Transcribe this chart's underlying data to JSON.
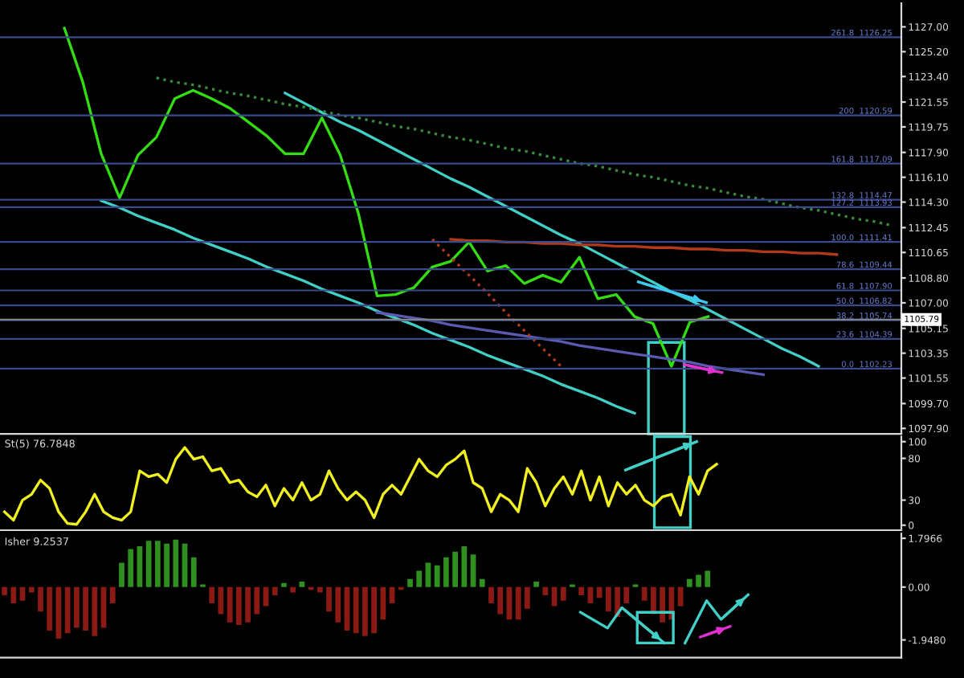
{
  "chart_data": [
    {
      "type": "line",
      "ylim": [
        1097.5,
        1128.7
      ],
      "tick_labels": "y",
      "categories": [
        null,
        null,
        null,
        null,
        null,
        null,
        null,
        null,
        null,
        null,
        null,
        null,
        null,
        null,
        null,
        null,
        null,
        null,
        null,
        null,
        null,
        null,
        null,
        null,
        null,
        null,
        null,
        null,
        null,
        null,
        null,
        null,
        null,
        null,
        null,
        null,
        null,
        null,
        null,
        null,
        null,
        null,
        null,
        null,
        null,
        null,
        null,
        null,
        null
      ],
      "yticks": [
        {
          "value": 1127.0,
          "label": "1127.00"
        },
        {
          "value": 1125.2,
          "label": "1125.20"
        },
        {
          "value": 1123.4,
          "label": "1123.40"
        },
        {
          "value": 1121.55,
          "label": "1121.55"
        },
        {
          "value": 1119.75,
          "label": "1119.75"
        },
        {
          "value": 1117.9,
          "label": "1117.90"
        },
        {
          "value": 1116.1,
          "label": "1116.10"
        },
        {
          "value": 1114.3,
          "label": "1114.30"
        },
        {
          "value": 1112.45,
          "label": "1112.45"
        },
        {
          "value": 1110.65,
          "label": "1110.65"
        },
        {
          "value": 1108.8,
          "label": "1108.80"
        },
        {
          "value": 1107.0,
          "label": "1107.00"
        },
        {
          "value": 1105.15,
          "label": "1105.15"
        },
        {
          "value": 1103.35,
          "label": "1103.35"
        },
        {
          "value": 1101.55,
          "label": "1101.55"
        },
        {
          "value": 1099.7,
          "label": "1099.70"
        },
        {
          "value": 1097.9,
          "label": "1097.90"
        }
      ],
      "series": [
        {
          "color": "#33dd11",
          "values": [
            null,
            null,
            null,
            1126.9,
            1123.0,
            1117.8,
            1114.6,
            1117.7,
            1119.0,
            1121.8,
            1122.4,
            1121.8,
            1121.1,
            1120.1,
            1119.1,
            1117.8,
            1117.8,
            1120.4,
            1117.7,
            1113.4,
            1107.5,
            1107.6,
            1108.1,
            1109.6,
            1110.0,
            1111.4,
            1109.3,
            1109.7,
            1108.4,
            1109.0,
            1108.5,
            1110.3,
            1107.3,
            1107.6,
            1106.0,
            1105.5,
            1102.4,
            1105.6,
            1106.0,
            null,
            null,
            null,
            null,
            null,
            null,
            null,
            null,
            null,
            null
          ]
        },
        {
          "color": "#40d0c8",
          "values": [
            null,
            null,
            null,
            null,
            null,
            1114.4,
            1113.9,
            1113.3,
            1112.8,
            1112.3,
            1111.7,
            1111.2,
            1110.7,
            1110.2,
            1109.6,
            1109.1,
            1108.6,
            1108.0,
            1107.5,
            1107.0,
            1106.4,
            1105.9,
            1105.4,
            1104.8,
            1104.3,
            1103.8,
            1103.2,
            1102.7,
            1102.2,
            1101.7,
            1101.1,
            1100.6,
            1100.1,
            1099.5,
            1099.0,
            null,
            null,
            null,
            null,
            null,
            null,
            null,
            null,
            null,
            null,
            null,
            null,
            null,
            null
          ]
        },
        {
          "color": "#40d0c8",
          "values": [
            null,
            null,
            null,
            null,
            null,
            null,
            null,
            null,
            null,
            null,
            null,
            null,
            null,
            null,
            null,
            1122.2,
            1121.5,
            1120.8,
            1120.1,
            1119.5,
            1118.8,
            1118.1,
            1117.4,
            1116.7,
            1116.0,
            1115.4,
            1114.7,
            1114.0,
            1113.3,
            1112.6,
            1111.9,
            1111.3,
            1110.6,
            1109.9,
            1109.2,
            1108.5,
            1107.8,
            1107.2,
            1106.5,
            1105.8,
            1105.1,
            1104.4,
            1103.7,
            1103.1,
            1102.4,
            null,
            null,
            null,
            null
          ]
        },
        {
          "color": "#3a8a3a",
          "line_style": "dotted",
          "values": [
            null,
            null,
            null,
            null,
            null,
            null,
            null,
            null,
            1123.3,
            1123.0,
            1122.8,
            1122.5,
            1122.2,
            1122.0,
            1121.7,
            1121.4,
            1121.2,
            1120.9,
            1120.6,
            1120.4,
            1120.1,
            1119.8,
            1119.6,
            1119.3,
            1119.0,
            1118.8,
            1118.5,
            1118.2,
            1118.0,
            1117.7,
            1117.4,
            1117.1,
            1116.9,
            1116.6,
            1116.3,
            1116.1,
            1115.8,
            1115.5,
            1115.3,
            1115.0,
            1114.7,
            1114.5,
            1114.2,
            1113.9,
            1113.7,
            1113.4,
            1113.1,
            1112.9,
            1112.6
          ]
        },
        {
          "color": "#b03a1a",
          "values": [
            null,
            null,
            null,
            null,
            null,
            null,
            null,
            null,
            null,
            null,
            null,
            null,
            null,
            null,
            null,
            null,
            null,
            null,
            null,
            null,
            null,
            null,
            null,
            null,
            1111.6,
            1111.5,
            1111.5,
            1111.4,
            1111.4,
            1111.3,
            1111.3,
            1111.2,
            1111.2,
            1111.1,
            1111.1,
            1111.0,
            1111.0,
            1110.9,
            1110.9,
            1110.8,
            1110.8,
            1110.7,
            1110.7,
            1110.6,
            1110.6,
            1110.5,
            null,
            null,
            null
          ]
        },
        {
          "color": "#5a5ab0",
          "values": [
            null,
            null,
            null,
            null,
            null,
            null,
            null,
            null,
            null,
            null,
            null,
            null,
            null,
            null,
            null,
            null,
            null,
            null,
            null,
            null,
            1106.3,
            1106.1,
            1105.9,
            1105.7,
            1105.4,
            1105.2,
            1105.0,
            1104.8,
            1104.6,
            1104.4,
            1104.2,
            1103.9,
            1103.7,
            1103.5,
            1103.3,
            1103.1,
            1102.9,
            1102.7,
            1102.4,
            1102.2,
            1102.0,
            1101.8,
            null,
            null,
            null,
            null,
            null,
            null,
            null
          ]
        },
        {
          "color": "#b03a1a",
          "line_style": "dotted",
          "values": [
            null,
            null,
            null,
            null,
            null,
            null,
            null,
            null,
            null,
            null,
            null,
            null,
            null,
            null,
            null,
            null,
            null,
            null,
            null,
            null,
            null,
            null,
            null,
            1111.6,
            1110.3,
            1109.0,
            1107.7,
            1106.3,
            1105.0,
            1103.7,
            1102.4,
            null,
            null,
            null,
            null,
            null,
            null,
            null,
            null,
            null,
            null,
            null,
            null,
            null,
            null,
            null,
            null,
            null,
            null
          ]
        }
      ],
      "ref_lines": [
        {
          "axis": "y",
          "value": 1126.25,
          "label": "261.8  1126.25",
          "color": "#3a4a8a"
        },
        {
          "axis": "y",
          "value": 1120.59,
          "label": "200  1120.59",
          "color": "#3a4a8a"
        },
        {
          "axis": "y",
          "value": 1117.09,
          "label": "161.8  1117.09",
          "color": "#3a4a8a"
        },
        {
          "axis": "y",
          "value": 1114.47,
          "label": "132.8  1114.47",
          "color": "#3a4a8a"
        },
        {
          "axis": "y",
          "value": 1113.93,
          "label": "127.2  1113.93",
          "color": "#3a4a8a"
        },
        {
          "axis": "y",
          "value": 1111.41,
          "label": "100.0  1111.41",
          "color": "#3a4a8a"
        },
        {
          "axis": "y",
          "value": 1109.44,
          "label": "78.6  1109.44",
          "color": "#3a4a8a"
        },
        {
          "axis": "y",
          "value": 1107.9,
          "label": "61.8  1107.90",
          "color": "#3a4a8a"
        },
        {
          "axis": "y",
          "value": 1106.82,
          "label": "50.0  1106.82",
          "color": "#3a4a8a"
        },
        {
          "axis": "y",
          "value": 1105.74,
          "label": "38.2  1105.74",
          "color": "#3a4a8a"
        },
        {
          "axis": "y",
          "value": 1104.39,
          "label": "23.6  1104.39",
          "color": "#3a4a8a"
        },
        {
          "axis": "y",
          "value": 1102.23,
          "label": "0.0  1102.23",
          "color": "#3a4a8a"
        },
        {
          "axis": "y",
          "value": 1105.79,
          "label": "1105.79",
          "color": "#8a8a8a"
        }
      ]
    },
    {
      "type": "line",
      "title": "St(5) 76.7848",
      "ylim": [
        -6,
        106
      ],
      "tick_labels": "y",
      "categories": [
        null,
        null,
        null,
        null,
        null,
        null,
        null,
        null,
        null,
        null,
        null,
        null,
        null,
        null,
        null,
        null,
        null,
        null,
        null,
        null,
        null,
        null,
        null,
        null,
        null,
        null,
        null,
        null,
        null,
        null,
        null,
        null,
        null,
        null,
        null,
        null,
        null,
        null,
        null,
        null,
        null,
        null,
        null,
        null,
        null,
        null,
        null,
        null,
        null,
        null,
        null,
        null,
        null,
        null,
        null,
        null,
        null,
        null,
        null,
        null,
        null,
        null,
        null,
        null,
        null,
        null,
        null,
        null,
        null,
        null,
        null,
        null,
        null,
        null,
        null,
        null,
        null,
        null,
        null,
        null,
        null,
        null,
        null,
        null,
        null,
        null,
        null,
        null,
        null,
        null,
        null,
        null,
        null,
        null,
        null,
        null,
        null,
        null,
        null,
        null
      ],
      "yticks": [
        0,
        30,
        80,
        100
      ],
      "series": [
        {
          "color": "#f0f020",
          "values": [
            16,
            6,
            30,
            37,
            54,
            44,
            16,
            2,
            1,
            16,
            37,
            16,
            9,
            6,
            16,
            65,
            58,
            61,
            51,
            79,
            93,
            79,
            82,
            65,
            68,
            51,
            54,
            40,
            34,
            48,
            23,
            44,
            30,
            51,
            30,
            37,
            65,
            44,
            30,
            40,
            30,
            9,
            37,
            48,
            37,
            58,
            79,
            65,
            58,
            72,
            79,
            89,
            51,
            44,
            16,
            37,
            30,
            16,
            68,
            51,
            23,
            44,
            58,
            37,
            65,
            30,
            58,
            23,
            51,
            37,
            48,
            30,
            23,
            34,
            37,
            12,
            58,
            37,
            65,
            73,
            null,
            null,
            null,
            null,
            null,
            null,
            null,
            null,
            null,
            null,
            null,
            null,
            null,
            null,
            null,
            null,
            null,
            null,
            null,
            null
          ]
        }
      ]
    },
    {
      "type": "bar",
      "title": "Isher 9.2537",
      "ylim": [
        -2.6,
        1.97
      ],
      "tick_labels": "y",
      "categories": [
        null,
        null,
        null,
        null,
        null,
        null,
        null,
        null,
        null,
        null,
        null,
        null,
        null,
        null,
        null,
        null,
        null,
        null,
        null,
        null,
        null,
        null,
        null,
        null,
        null,
        null,
        null,
        null,
        null,
        null,
        null,
        null,
        null,
        null,
        null,
        null,
        null,
        null,
        null,
        null,
        null,
        null,
        null,
        null,
        null,
        null,
        null,
        null,
        null,
        null,
        null,
        null,
        null,
        null,
        null,
        null,
        null,
        null,
        null,
        null,
        null,
        null,
        null,
        null,
        null,
        null,
        null,
        null,
        null,
        null,
        null,
        null,
        null,
        null,
        null,
        null,
        null,
        null,
        null,
        null,
        null,
        null,
        null,
        null,
        null,
        null,
        null,
        null,
        null,
        null,
        null,
        null,
        null,
        null,
        null,
        null,
        null,
        null,
        null,
        null
      ],
      "yticks": [
        {
          "value": 1.7966,
          "label": "1.7966"
        },
        {
          "value": 0,
          "label": "0.00"
        },
        {
          "value": -1.948,
          "label": "-1.9480"
        }
      ],
      "series": [
        {
          "values": [
            -0.3,
            -0.6,
            -0.5,
            -0.2,
            -0.9,
            -1.6,
            -1.9,
            -1.7,
            -1.5,
            -1.6,
            -1.8,
            -1.5,
            -0.6,
            0.9,
            1.4,
            1.5,
            1.7,
            1.7,
            1.6,
            1.75,
            1.6,
            1.1,
            0.1,
            -0.6,
            -1.0,
            -1.3,
            -1.4,
            -1.3,
            -1.0,
            -0.7,
            -0.3,
            0.15,
            -0.2,
            0.2,
            -0.1,
            -0.2,
            -0.9,
            -1.3,
            -1.6,
            -1.7,
            -1.8,
            -1.7,
            -1.2,
            -0.6,
            -0.1,
            0.3,
            0.6,
            0.9,
            0.8,
            1.1,
            1.3,
            1.5,
            1.2,
            0.3,
            -0.6,
            -1.0,
            -1.2,
            -1.2,
            -0.8,
            0.2,
            -0.3,
            -0.7,
            -0.5,
            0.1,
            -0.3,
            -0.6,
            -0.4,
            -0.9,
            -1.1,
            -0.6,
            0.1,
            -0.5,
            -1.0,
            -1.3,
            -1.2,
            -0.7,
            0.3,
            0.45,
            0.6,
            null,
            null,
            null,
            null,
            null,
            null,
            null,
            null,
            null,
            null,
            null,
            null,
            null,
            null,
            null,
            null,
            null,
            null,
            null,
            null,
            null
          ],
          "colors": [
            "#8b1a14",
            "#8b1a14",
            "#8b1a14",
            "#8b1a14",
            "#8b1a14",
            "#8b1a14",
            "#8b1a14",
            "#8b1a14",
            "#8b1a14",
            "#8b1a14",
            "#8b1a14",
            "#8b1a14",
            "#8b1a14",
            "#2f8f1f",
            "#2f8f1f",
            "#2f8f1f",
            "#2f8f1f",
            "#2f8f1f",
            "#2f8f1f",
            "#2f8f1f",
            "#2f8f1f",
            "#2f8f1f",
            "#2f8f1f",
            "#8b1a14",
            "#8b1a14",
            "#8b1a14",
            "#8b1a14",
            "#8b1a14",
            "#8b1a14",
            "#8b1a14",
            "#8b1a14",
            "#2f8f1f",
            "#8b1a14",
            "#2f8f1f",
            "#8b1a14",
            "#8b1a14",
            "#8b1a14",
            "#8b1a14",
            "#8b1a14",
            "#8b1a14",
            "#8b1a14",
            "#8b1a14",
            "#8b1a14",
            "#8b1a14",
            "#8b1a14",
            "#2f8f1f",
            "#2f8f1f",
            "#2f8f1f",
            "#2f8f1f",
            "#2f8f1f",
            "#2f8f1f",
            "#2f8f1f",
            "#2f8f1f",
            "#2f8f1f",
            "#8b1a14",
            "#8b1a14",
            "#8b1a14",
            "#8b1a14",
            "#8b1a14",
            "#2f8f1f",
            "#8b1a14",
            "#8b1a14",
            "#8b1a14",
            "#2f8f1f",
            "#8b1a14",
            "#8b1a14",
            "#8b1a14",
            "#8b1a14",
            "#8b1a14",
            "#8b1a14",
            "#2f8f1f",
            "#8b1a14",
            "#8b1a14",
            "#8b1a14",
            "#8b1a14",
            "#8b1a14",
            "#2f8f1f",
            "#2f8f1f",
            "#2f8f1f",
            null,
            null,
            null,
            null,
            null,
            null,
            null,
            null,
            null,
            null,
            null,
            null,
            null,
            null,
            null,
            null,
            null,
            null,
            null,
            null,
            null
          ]
        }
      ]
    }
  ]
}
